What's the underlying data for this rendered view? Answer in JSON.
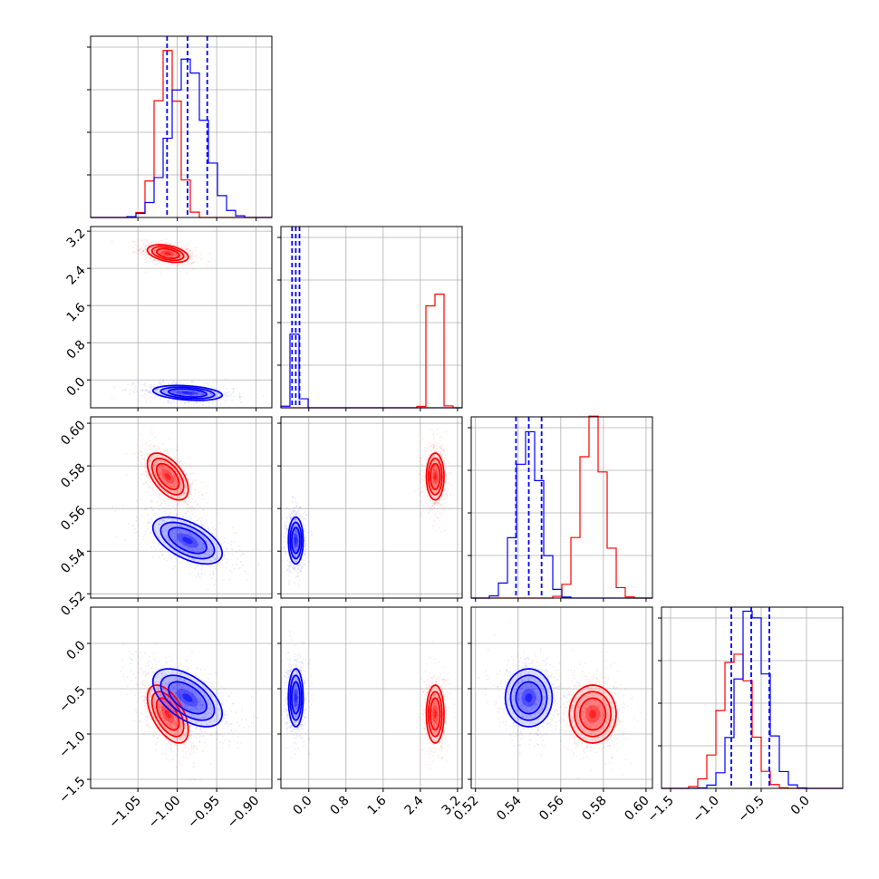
{
  "colors": {
    "red": "#ff0000",
    "blue": "#0000ff",
    "grid": "#b0b0b0",
    "frame": "#000000"
  },
  "chart_data": {
    "type": "corner",
    "grid": true,
    "series": [
      {
        "color": "#ff0000",
        "means": [
          -1.012,
          2.72,
          0.575,
          -0.78
        ],
        "sigmas": [
          0.013,
          0.095,
          0.0055,
          0.16
        ],
        "corr": {
          "p1_0": -0.4,
          "p2_0": -0.55,
          "p2_1": 0.0,
          "p3_0": -0.55,
          "p3_1": 0.0,
          "p3_2": 0.0
        },
        "marginal_peak": [
          0.96,
          0.99,
          0.97,
          0.78
        ]
      },
      {
        "color": "#0000ff",
        "means": [
          -0.987,
          -0.28,
          0.545,
          -0.6
        ],
        "sigmas": [
          0.022,
          0.08,
          0.0055,
          0.16
        ],
        "corr": {
          "p1_0": -0.3,
          "p2_0": -0.55,
          "p2_1": 0.0,
          "p3_0": -0.55,
          "p3_1": 0.0,
          "p3_2": 0.0
        },
        "marginal_peak": [
          0.88,
          0.42,
          0.96,
          0.97
        ],
        "quantiles": [
          [
            -1.013,
            -0.987,
            -0.962
          ],
          [
            -0.36,
            -0.28,
            -0.2
          ],
          [
            0.539,
            0.545,
            0.551
          ],
          [
            -0.83,
            -0.61,
            -0.41
          ]
        ]
      }
    ],
    "axes": [
      {
        "range": [
          -1.11,
          -0.88
        ],
        "ticks": [
          -1.05,
          -1.0,
          -0.95,
          -0.9
        ],
        "tick_labels": [
          "−1.05",
          "−1.00",
          "−0.95",
          "−0.90"
        ]
      },
      {
        "range": [
          -0.6,
          3.3
        ],
        "ticks": [
          0.0,
          0.8,
          1.6,
          2.4,
          3.2
        ],
        "tick_labels": [
          "0.0",
          "0.8",
          "1.6",
          "2.4",
          "3.2"
        ]
      },
      {
        "range": [
          0.518,
          0.603
        ],
        "ticks": [
          0.52,
          0.54,
          0.56,
          0.58,
          0.6
        ],
        "tick_labels": [
          "0.52",
          "0.54",
          "0.56",
          "0.58",
          "0.60"
        ]
      },
      {
        "range": [
          -1.6,
          0.4
        ],
        "ticks": [
          -1.5,
          -1.0,
          -0.5,
          0.0
        ],
        "tick_labels": [
          "−1.5",
          "−1.0",
          "−0.5",
          "0.0"
        ]
      }
    ]
  }
}
